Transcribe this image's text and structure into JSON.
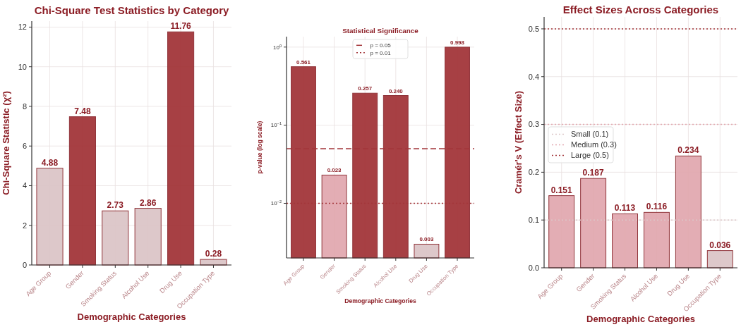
{
  "chart_data": [
    {
      "type": "bar",
      "title": "Chi-Square Test Statistics by Category",
      "xlabel": "Demographic Categories",
      "ylabel": "Chi-Square Statistic (χ²)",
      "categories": [
        "Age Group",
        "Gender",
        "Smoking Status",
        "Alcohol Use",
        "Drug Use",
        "Occupation Type"
      ],
      "values": [
        4.88,
        7.48,
        2.73,
        2.86,
        11.76,
        0.28
      ],
      "colors": [
        "#dcc6c8",
        "#a3363a",
        "#dcc6c8",
        "#dcc6c8",
        "#a3363a",
        "#dcc6c8"
      ],
      "ylim": [
        0,
        12.3
      ],
      "yticks": [
        0,
        2,
        4,
        6,
        8,
        10,
        12
      ],
      "grid": true,
      "data_labels": true
    },
    {
      "type": "bar",
      "title": "Statistical Significance",
      "xlabel": "Demographic Categories",
      "ylabel": "p-value (log scale)",
      "categories": [
        "Age Group",
        "Gender",
        "Smoking Status",
        "Alcohol Use",
        "Drug Use",
        "Occupation Type"
      ],
      "values": [
        0.561,
        0.023,
        0.257,
        0.24,
        0.003,
        0.998
      ],
      "value_labels": [
        "0.561",
        "0.023",
        "0.257",
        "0.240",
        "0.003",
        "0.998"
      ],
      "colors": [
        "#a3363a",
        "#e2a9b0",
        "#a3363a",
        "#a3363a",
        "#dcc6c8",
        "#a3363a"
      ],
      "log": true,
      "ylim": [
        0.002,
        1.36
      ],
      "yticks": [
        {
          "value": 0.01,
          "label": "10$^{−2}$"
        },
        {
          "value": 0.1,
          "label": "10$^{−1}$"
        },
        {
          "value": 1,
          "label": "10$^{0}$"
        }
      ],
      "grid": true,
      "legend": "top",
      "ref_lines": [
        {
          "axis": "y",
          "value": 0.05,
          "label": "p = 0.05",
          "color": "#a3363a",
          "line_style": "dashed"
        },
        {
          "axis": "y",
          "value": 0.01,
          "label": "p = 0.01",
          "color": "#a3363a",
          "line_style": "dotted"
        }
      ]
    },
    {
      "type": "bar",
      "title": "Effect Sizes Across Categories",
      "xlabel": "Demographic Categories",
      "ylabel": "Cramér's V (Effect Size)",
      "categories": [
        "Age Group",
        "Gender",
        "Smoking Status",
        "Alcohol Use",
        "Drug Use",
        "Occupation Type"
      ],
      "values": [
        0.151,
        0.187,
        0.113,
        0.116,
        0.234,
        0.036
      ],
      "colors": [
        "#e2a9b0",
        "#e2a9b0",
        "#e2a9b0",
        "#e2a9b0",
        "#e2a9b0",
        "#dcc6c8"
      ],
      "ylim": [
        0,
        0.525
      ],
      "yticks": [
        {
          "value": 0,
          "label": "0.0"
        },
        {
          "value": 0.1,
          "label": "0.1"
        },
        {
          "value": 0.2,
          "label": "0.2"
        },
        {
          "value": 0.3,
          "label": "0.3"
        },
        {
          "value": 0.4,
          "label": "0.4"
        },
        {
          "value": 0.5,
          "label": "0.5"
        }
      ],
      "grid": true,
      "data_labels": true,
      "legend": "left",
      "ref_lines": [
        {
          "axis": "y",
          "value": 0.1,
          "label": "Small (0.1)",
          "color": "#dcc6c8",
          "line_style": "dotted"
        },
        {
          "axis": "y",
          "value": 0.3,
          "label": "Medium (0.3)",
          "color": "#e2a9b0",
          "line_style": "dotted"
        },
        {
          "axis": "y",
          "value": 0.5,
          "label": "Large (0.5)",
          "color": "#a3363a",
          "line_style": "dotted"
        }
      ]
    }
  ]
}
